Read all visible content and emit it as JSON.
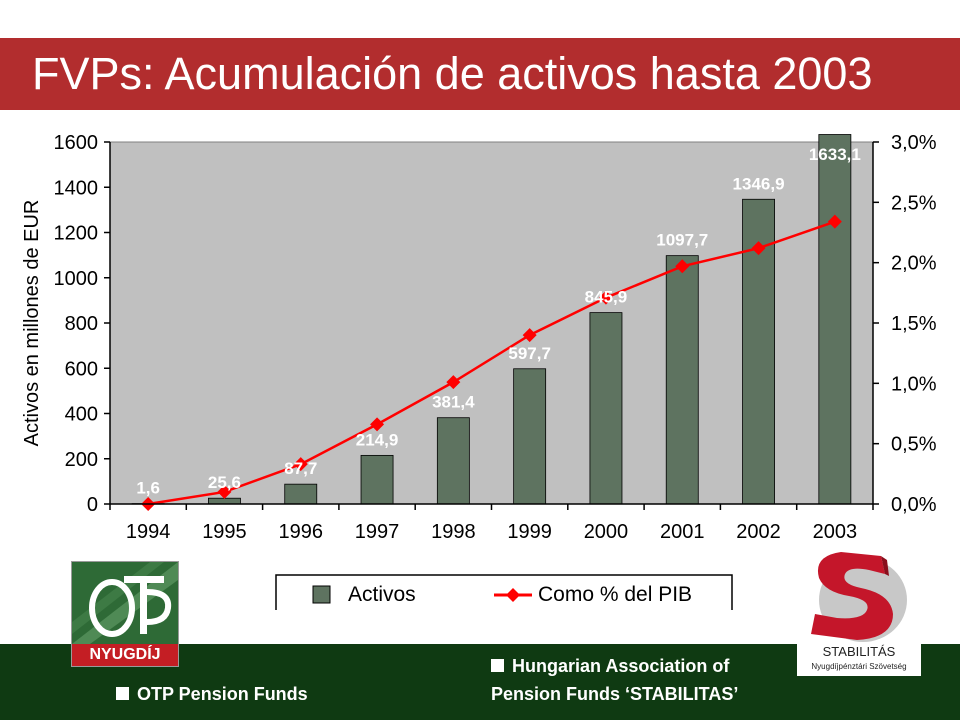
{
  "slide": {
    "title": "FVPs: Acumulación de activos hasta 2003"
  },
  "colors": {
    "title_bar": "#b22d2e",
    "footer": "#0f3a12",
    "bars": "#5e7360",
    "line": "#ff0000",
    "plot_background": "#c0c0c0"
  },
  "chart_data": {
    "type": "bar",
    "categories": [
      "1994",
      "1995",
      "1996",
      "1997",
      "1998",
      "1999",
      "2000",
      "2001",
      "2002",
      "2003"
    ],
    "series": [
      {
        "name": "Activos",
        "type": "bar",
        "axis": "left",
        "values": [
          1.6,
          25.6,
          87.7,
          214.9,
          381.4,
          597.7,
          845.9,
          1097.7,
          1346.9,
          1633.1
        ],
        "data_labels": [
          "1,6",
          "25,6",
          "87,7",
          "214,9",
          "381,4",
          "597,7",
          "845,9",
          "1097,7",
          "1346,9",
          "1633,1"
        ]
      },
      {
        "name": "Como % del PIB",
        "type": "line",
        "axis": "right",
        "values": [
          0.0,
          0.1,
          0.33,
          0.66,
          1.01,
          1.4,
          1.71,
          1.97,
          2.12,
          2.34
        ]
      }
    ],
    "ylabel": "Activos en millones de EUR",
    "ylim": [
      0,
      1600
    ],
    "y_ticks": [
      "0",
      "200",
      "400",
      "600",
      "800",
      "1000",
      "1200",
      "1400",
      "1600"
    ],
    "y2lim": [
      0,
      3.0
    ],
    "y2_ticks": [
      "0,0%",
      "0,5%",
      "1,0%",
      "1,5%",
      "2,0%",
      "2,5%",
      "3,0%"
    ],
    "grid": false,
    "legend_position": "bottom"
  },
  "footer": {
    "left_label": "OTP Pension Funds",
    "right_line1": "Hungarian Association of",
    "right_line2": "Pension Funds ‘STABILITAS’"
  },
  "logos": {
    "otp_text": "NYUGDÍJ",
    "otp_mark": "OTP",
    "stabilitas_name": "STABILITÁS",
    "stabilitas_sub": "Nyugdíjpénztári Szövetség"
  }
}
